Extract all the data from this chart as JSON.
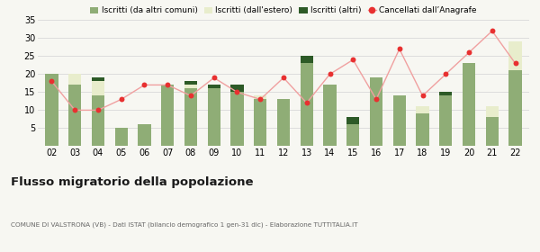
{
  "years": [
    "02",
    "03",
    "04",
    "05",
    "06",
    "07",
    "08",
    "09",
    "10",
    "11",
    "12",
    "13",
    "14",
    "15",
    "16",
    "17",
    "18",
    "19",
    "20",
    "21",
    "22"
  ],
  "iscritti_comuni": [
    20,
    17,
    14,
    5,
    6,
    17,
    16,
    16,
    15,
    13,
    13,
    23,
    17,
    6,
    19,
    14,
    9,
    14,
    23,
    8,
    21
  ],
  "iscritti_estero": [
    0,
    3,
    4,
    0,
    0,
    0,
    1,
    0,
    0,
    1,
    0,
    0,
    0,
    0,
    0,
    0,
    2,
    0,
    0,
    3,
    8
  ],
  "iscritti_altri": [
    0,
    0,
    1,
    0,
    0,
    0,
    1,
    1,
    2,
    0,
    0,
    2,
    0,
    2,
    0,
    0,
    0,
    1,
    0,
    0,
    0
  ],
  "cancellati": [
    18,
    10,
    10,
    13,
    17,
    17,
    14,
    19,
    15,
    13,
    19,
    12,
    20,
    24,
    13,
    27,
    14,
    20,
    26,
    32,
    23
  ],
  "color_comuni": "#8fad76",
  "color_estero": "#e8edcc",
  "color_altri": "#2d5a27",
  "color_cancellati": "#e83030",
  "color_line": "#f0a0a0",
  "ylim": [
    0,
    35
  ],
  "yticks": [
    0,
    5,
    10,
    15,
    20,
    25,
    30,
    35
  ],
  "title": "Flusso migratorio della popolazione",
  "subtitle": "COMUNE DI VALSTRONA (VB) - Dati ISTAT (bilancio demografico 1 gen-31 dic) - Elaborazione TUTTITALIA.IT",
  "legend_labels": [
    "Iscritti (da altri comuni)",
    "Iscritti (dall'estero)",
    "Iscritti (altri)",
    "Cancellati dall’Anagrafe"
  ],
  "bg_color": "#f7f7f2",
  "grid_color": "#d8d8d8"
}
